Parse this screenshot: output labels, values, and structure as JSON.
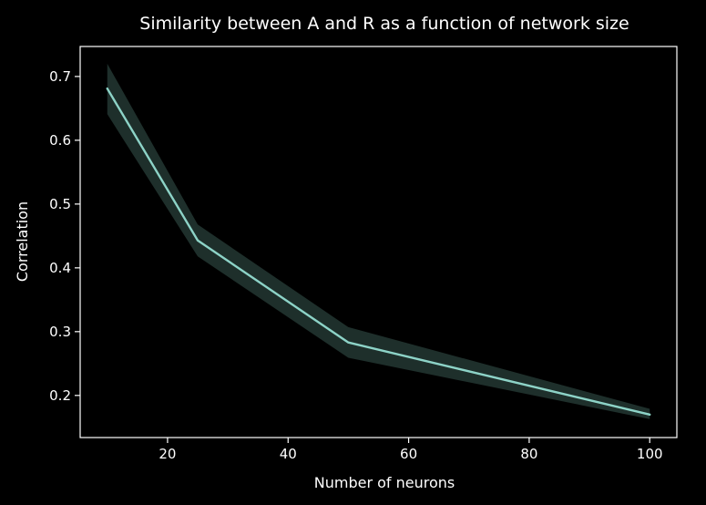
{
  "chart_data": {
    "type": "line",
    "title": "Similarity between A and R as a function of network size",
    "xlabel": "Number of neurons",
    "ylabel": "Correlation",
    "xlim": [
      5.5,
      104.5
    ],
    "ylim": [
      0.134,
      0.747
    ],
    "xticks": [
      20,
      40,
      60,
      80,
      100
    ],
    "yticks": [
      0.2,
      0.3,
      0.4,
      0.5,
      0.6,
      0.7
    ],
    "xtick_labels": [
      "20",
      "40",
      "60",
      "80",
      "100"
    ],
    "ytick_labels": [
      "0.2",
      "0.3",
      "0.4",
      "0.5",
      "0.6",
      "0.7"
    ],
    "grid": false,
    "legend": "none",
    "series": [
      {
        "x": [
          10,
          25,
          50,
          100
        ],
        "y": [
          0.681,
          0.443,
          0.283,
          0.17
        ],
        "y_lower": [
          0.641,
          0.418,
          0.259,
          0.163
        ],
        "y_upper": [
          0.72,
          0.468,
          0.307,
          0.179
        ],
        "color": "#8dd3c7",
        "band_color": "#1e2f2b"
      }
    ],
    "colors": {
      "background": "#000000",
      "axes": "#ffffff",
      "text": "#ffffff"
    }
  }
}
